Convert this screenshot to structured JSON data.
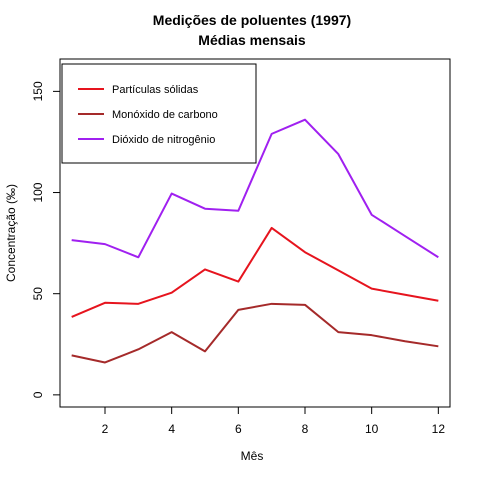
{
  "chart_data": {
    "type": "line",
    "title": "Medições de poluentes (1997)",
    "subtitle": "Médias mensais",
    "xlabel": "Mês",
    "ylabel": "Concentração (‰)",
    "xlim": [
      0.65,
      12.35
    ],
    "ylim": [
      -6,
      166
    ],
    "x_ticks": [
      2,
      4,
      6,
      8,
      10,
      12
    ],
    "y_ticks": [
      0,
      50,
      100,
      150
    ],
    "grid": false,
    "legend_position": "top-left",
    "x": [
      1,
      2,
      3,
      4,
      5,
      6,
      7,
      8,
      9,
      10,
      11,
      12
    ],
    "series": [
      {
        "name": "Partículas sólidas",
        "color": "#e6141e",
        "values": [
          38.5,
          45.5,
          45,
          50.5,
          62,
          56,
          82.5,
          70.5,
          61.5,
          52.5,
          49.5,
          46.5
        ]
      },
      {
        "name": "Monóxido de carbono",
        "color": "#a52a2a",
        "values": [
          19.5,
          16,
          22.5,
          31,
          21.5,
          42,
          45,
          44.5,
          31,
          29.5,
          26.5,
          24
        ]
      },
      {
        "name": "Dióxido de nitrogênio",
        "color": "#a020f0",
        "values": [
          76.5,
          74.5,
          68,
          99.5,
          92,
          91,
          129,
          136,
          119,
          89,
          78.5,
          68
        ]
      }
    ]
  }
}
